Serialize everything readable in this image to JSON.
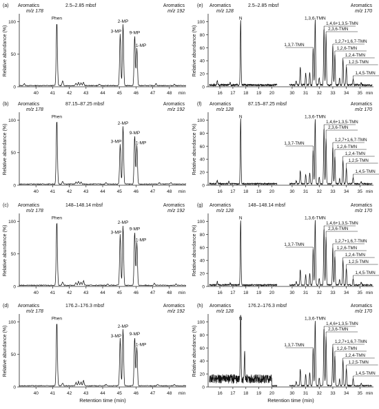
{
  "figure": {
    "ylabel": "Relative abundance (%)",
    "xlabel": "Retention time (min)",
    "unit": "min"
  },
  "chart_data": [
    {
      "panel": "(a)",
      "type": "line",
      "depth": "2.5–2.85 mbsf",
      "left_title": [
        "Aromatics",
        "m/z 178"
      ],
      "right_title": [
        "Aromatics",
        "m/z 192"
      ],
      "xlim": [
        39,
        49
      ],
      "ylim": [
        0,
        110
      ],
      "xticks": [
        "40",
        "41",
        "42",
        "43",
        "44",
        "45",
        "46",
        "47",
        "48",
        "min"
      ],
      "yticks": [
        "0",
        "50",
        "100"
      ],
      "peaks": [
        {
          "x": 41.25,
          "y": 100,
          "label": "Phen"
        },
        {
          "x": 45.05,
          "y": 80,
          "label": "3-MP"
        },
        {
          "x": 45.22,
          "y": 95,
          "label": "2-MP"
        },
        {
          "x": 45.92,
          "y": 78,
          "label": "9-MP"
        },
        {
          "x": 46.05,
          "y": 58,
          "label": "1-MP"
        },
        {
          "x": 41.6,
          "y": 7
        },
        {
          "x": 42.4,
          "y": 4
        },
        {
          "x": 42.55,
          "y": 5
        },
        {
          "x": 42.7,
          "y": 4
        },
        {
          "x": 42.85,
          "y": 5
        },
        {
          "x": 39.3,
          "y": 3
        },
        {
          "x": 43.8,
          "y": 2
        },
        {
          "x": 47.2,
          "y": 3
        },
        {
          "x": 48.3,
          "y": 2
        }
      ]
    },
    {
      "panel": "(b)",
      "type": "line",
      "depth": "87.15–87.25 mbsf",
      "left_title": [
        "Aromatics",
        "m/z 178"
      ],
      "right_title": [
        "Aromatics",
        "m/z 192"
      ],
      "xlim": [
        39,
        49
      ],
      "ylim": [
        0,
        110
      ],
      "xticks": [
        "40",
        "41",
        "42",
        "43",
        "44",
        "45",
        "46",
        "47",
        "48",
        "min"
      ],
      "yticks": [
        "0",
        "50",
        "100"
      ],
      "peaks": [
        {
          "x": 41.25,
          "y": 100,
          "label": "Phen"
        },
        {
          "x": 45.05,
          "y": 62,
          "label": "3-MP"
        },
        {
          "x": 45.22,
          "y": 90,
          "label": "2-MP"
        },
        {
          "x": 45.92,
          "y": 75,
          "label": "9-MP"
        },
        {
          "x": 46.05,
          "y": 60,
          "label": "1-MP"
        },
        {
          "x": 41.6,
          "y": 4
        },
        {
          "x": 42.4,
          "y": 3
        },
        {
          "x": 42.55,
          "y": 4
        },
        {
          "x": 42.7,
          "y": 3
        },
        {
          "x": 44.2,
          "y": 2
        },
        {
          "x": 47.4,
          "y": 2
        },
        {
          "x": 48.1,
          "y": 2
        }
      ]
    },
    {
      "panel": "(c)",
      "type": "line",
      "depth": "148–148.14 mbsf",
      "left_title": [
        "Aromatics",
        "m/z 178"
      ],
      "right_title": [
        "Aromatics",
        "m/z 192"
      ],
      "xlim": [
        39,
        49
      ],
      "ylim": [
        0,
        110
      ],
      "xticks": [
        "40",
        "41",
        "42",
        "43",
        "44",
        "45",
        "46",
        "47",
        "48",
        "min"
      ],
      "yticks": [
        "0",
        "50",
        "100"
      ],
      "peaks": [
        {
          "x": 41.25,
          "y": 100,
          "label": "Phen"
        },
        {
          "x": 45.05,
          "y": 78,
          "label": "3-MP"
        },
        {
          "x": 45.22,
          "y": 93,
          "label": "2-MP"
        },
        {
          "x": 45.92,
          "y": 83,
          "label": "9-MP"
        },
        {
          "x": 46.05,
          "y": 66,
          "label": "1-MP"
        },
        {
          "x": 41.6,
          "y": 5
        },
        {
          "x": 42.4,
          "y": 4
        },
        {
          "x": 42.55,
          "y": 6
        },
        {
          "x": 42.7,
          "y": 5
        },
        {
          "x": 42.85,
          "y": 7
        },
        {
          "x": 44.3,
          "y": 2
        },
        {
          "x": 47.1,
          "y": 3
        },
        {
          "x": 48.4,
          "y": 2
        }
      ]
    },
    {
      "panel": "(d)",
      "type": "line",
      "depth": "176.2–176.3 mbsf",
      "left_title": [
        "Aromatics",
        "m/z 178"
      ],
      "right_title": [
        "Aromatics",
        "m/z 192"
      ],
      "xlim": [
        39,
        49
      ],
      "ylim": [
        0,
        110
      ],
      "xticks": [
        "40",
        "41",
        "42",
        "43",
        "44",
        "45",
        "46",
        "47",
        "48",
        "min"
      ],
      "yticks": [
        "0",
        "50",
        "100"
      ],
      "peaks": [
        {
          "x": 41.25,
          "y": 100,
          "label": "Phen"
        },
        {
          "x": 45.05,
          "y": 73,
          "label": "3-MP"
        },
        {
          "x": 45.22,
          "y": 88,
          "label": "2-MP"
        },
        {
          "x": 45.92,
          "y": 76,
          "label": "9-MP"
        },
        {
          "x": 46.05,
          "y": 60,
          "label": "1-MP"
        },
        {
          "x": 41.6,
          "y": 4
        },
        {
          "x": 42.4,
          "y": 5
        },
        {
          "x": 42.55,
          "y": 7
        },
        {
          "x": 42.7,
          "y": 6
        },
        {
          "x": 42.85,
          "y": 8
        },
        {
          "x": 44.2,
          "y": 2
        },
        {
          "x": 47.3,
          "y": 2
        },
        {
          "x": 48.3,
          "y": 2
        }
      ]
    },
    {
      "panel": "(e)",
      "type": "line",
      "depth": "2.5–2.85 mbsf",
      "left_title": [
        "Aromatics",
        "m/z 128"
      ],
      "right_title": [
        "Aromatics",
        "m/z 170"
      ],
      "xlim": [
        15,
        36
      ],
      "ylim": [
        0,
        110
      ],
      "xticks": [
        "16",
        "17",
        "18",
        "19",
        "20",
        "30",
        "31",
        "32",
        "33",
        "34",
        "35",
        "min"
      ],
      "yticks": [
        "0",
        "20",
        "40",
        "60",
        "80",
        "100"
      ],
      "noise": 3,
      "peaks": [
        {
          "x": 17.6,
          "y": 100,
          "label": "N"
        },
        {
          "x": 15.8,
          "y": 6
        },
        {
          "x": 16.8,
          "y": 4
        },
        {
          "x": 30.3,
          "y": 6
        },
        {
          "x": 30.6,
          "y": 28
        },
        {
          "x": 31.0,
          "y": 18
        },
        {
          "x": 31.3,
          "y": 20
        },
        {
          "x": 31.55,
          "y": 56,
          "label": "1,3,7-TMN"
        },
        {
          "x": 31.7,
          "y": 100,
          "label": "1,3,6-TMN"
        },
        {
          "x": 32.0,
          "y": 12
        },
        {
          "x": 32.35,
          "y": 88,
          "label": "1,4,6+1,3,5-TMN"
        },
        {
          "x": 32.5,
          "y": 78,
          "label": "2,3,6-TMN"
        },
        {
          "x": 33.0,
          "y": 60,
          "label": "1,2,7+1,6,7-TMN"
        },
        {
          "x": 33.15,
          "y": 46,
          "label": "1,2,6-TMN"
        },
        {
          "x": 33.5,
          "y": 10
        },
        {
          "x": 33.75,
          "y": 40,
          "label": "1,2,4-TMN"
        },
        {
          "x": 34.0,
          "y": 28,
          "label": "1,2,5-TMN"
        },
        {
          "x": 34.5,
          "y": 10,
          "label": "1,4,5-TMN"
        },
        {
          "x": 35.1,
          "y": 4
        }
      ]
    },
    {
      "panel": "(f)",
      "type": "line",
      "depth": "87.15–87.25 mbsf",
      "left_title": [
        "Aromatics",
        "m/z 128"
      ],
      "right_title": [
        "Aromatics",
        "m/z 170"
      ],
      "xlim": [
        15,
        36
      ],
      "ylim": [
        0,
        110
      ],
      "xticks": [
        "16",
        "17",
        "18",
        "19",
        "20",
        "30",
        "31",
        "32",
        "33",
        "34",
        "35",
        "min"
      ],
      "yticks": [
        "0",
        "20",
        "40",
        "60",
        "80",
        "100"
      ],
      "noise": 2,
      "peaks": [
        {
          "x": 17.6,
          "y": 100,
          "label": "N"
        },
        {
          "x": 15.8,
          "y": 5
        },
        {
          "x": 16.7,
          "y": 4
        },
        {
          "x": 30.3,
          "y": 5
        },
        {
          "x": 30.6,
          "y": 20
        },
        {
          "x": 31.0,
          "y": 14
        },
        {
          "x": 31.3,
          "y": 16
        },
        {
          "x": 31.55,
          "y": 52,
          "label": "1,3,7-TMN"
        },
        {
          "x": 31.7,
          "y": 100,
          "label": "1,3,6-TMN"
        },
        {
          "x": 32.0,
          "y": 10
        },
        {
          "x": 32.35,
          "y": 86,
          "label": "1,4,6+1,3,5-TMN"
        },
        {
          "x": 32.5,
          "y": 70,
          "label": "2,3,6-TMN"
        },
        {
          "x": 33.0,
          "y": 56,
          "label": "1,2,7+1,6,7-TMN"
        },
        {
          "x": 33.15,
          "y": 42,
          "label": "1,2,6-TMN"
        },
        {
          "x": 33.5,
          "y": 8
        },
        {
          "x": 33.75,
          "y": 36,
          "label": "1,2,4-TMN"
        },
        {
          "x": 34.0,
          "y": 24,
          "label": "1,2,5-TMN"
        },
        {
          "x": 34.5,
          "y": 9,
          "label": "1,4,5-TMN"
        },
        {
          "x": 35.1,
          "y": 3
        }
      ]
    },
    {
      "panel": "(g)",
      "type": "line",
      "depth": "148–148.14 mbsf",
      "left_title": [
        "Aromatics",
        "m/z 128"
      ],
      "right_title": [
        "Aromatics",
        "m/z 170"
      ],
      "xlim": [
        15,
        36
      ],
      "ylim": [
        0,
        110
      ],
      "xticks": [
        "16",
        "17",
        "18",
        "19",
        "20",
        "30",
        "31",
        "32",
        "33",
        "34",
        "35",
        "min"
      ],
      "yticks": [
        "0",
        "20",
        "40",
        "60",
        "80",
        "100"
      ],
      "noise": 2,
      "peaks": [
        {
          "x": 17.6,
          "y": 100,
          "label": "N"
        },
        {
          "x": 15.8,
          "y": 5
        },
        {
          "x": 16.8,
          "y": 3
        },
        {
          "x": 30.3,
          "y": 5
        },
        {
          "x": 30.6,
          "y": 24
        },
        {
          "x": 31.0,
          "y": 16
        },
        {
          "x": 31.3,
          "y": 18
        },
        {
          "x": 31.55,
          "y": 55,
          "label": "1,3,7-TMN"
        },
        {
          "x": 31.7,
          "y": 100,
          "label": "1,3,6-TMN"
        },
        {
          "x": 32.0,
          "y": 11
        },
        {
          "x": 32.35,
          "y": 88,
          "label": "1,4,6+1,3,5-TMN"
        },
        {
          "x": 32.5,
          "y": 75,
          "label": "2,3,6-TMN"
        },
        {
          "x": 33.0,
          "y": 58,
          "label": "1,2,7+1,6,7-TMN"
        },
        {
          "x": 33.15,
          "y": 45,
          "label": "1,2,6-TMN"
        },
        {
          "x": 33.5,
          "y": 9
        },
        {
          "x": 33.75,
          "y": 38,
          "label": "1,2,4-TMN"
        },
        {
          "x": 34.0,
          "y": 26,
          "label": "1,2,5-TMN"
        },
        {
          "x": 34.5,
          "y": 10,
          "label": "1,4,5-TMN"
        },
        {
          "x": 35.1,
          "y": 4
        }
      ]
    },
    {
      "panel": "(h)",
      "type": "line",
      "depth": "176.2–176.3 mbsf",
      "left_title": [
        "Aromatics",
        "m/z 128"
      ],
      "right_title": [
        "Aromatics",
        "m/z 170"
      ],
      "xlim": [
        15,
        36
      ],
      "ylim": [
        0,
        110
      ],
      "xticks": [
        "16",
        "17",
        "18",
        "19",
        "20",
        "30",
        "31",
        "32",
        "33",
        "34",
        "35",
        "min"
      ],
      "yticks": [
        "0",
        "20",
        "40",
        "60",
        "80",
        "100"
      ],
      "noise": 14,
      "noise_range": [
        15,
        20
      ],
      "peaks": [
        {
          "x": 17.6,
          "y": 100,
          "label": "N"
        },
        {
          "x": 17.9,
          "y": 40
        },
        {
          "x": 30.3,
          "y": 6
        },
        {
          "x": 30.6,
          "y": 26
        },
        {
          "x": 31.0,
          "y": 18
        },
        {
          "x": 31.3,
          "y": 20
        },
        {
          "x": 31.55,
          "y": 58,
          "label": "1,3,7-TMN"
        },
        {
          "x": 31.7,
          "y": 100,
          "label": "1,3,6-TMN"
        },
        {
          "x": 32.0,
          "y": 12
        },
        {
          "x": 32.35,
          "y": 90,
          "label": "1,4,6+1,3,5-TMN"
        },
        {
          "x": 32.5,
          "y": 76,
          "label": "2,3,6-TMN"
        },
        {
          "x": 33.0,
          "y": 60,
          "label": "1,2,7+1,6,7-TMN"
        },
        {
          "x": 33.15,
          "y": 46,
          "label": "1,2,6-TMN"
        },
        {
          "x": 33.5,
          "y": 10
        },
        {
          "x": 33.75,
          "y": 40,
          "label": "1,2,4-TMN"
        },
        {
          "x": 34.0,
          "y": 27,
          "label": "1,2,5-TMN"
        },
        {
          "x": 34.5,
          "y": 11,
          "label": "1,4,5-TMN"
        },
        {
          "x": 35.1,
          "y": 4
        }
      ]
    }
  ]
}
